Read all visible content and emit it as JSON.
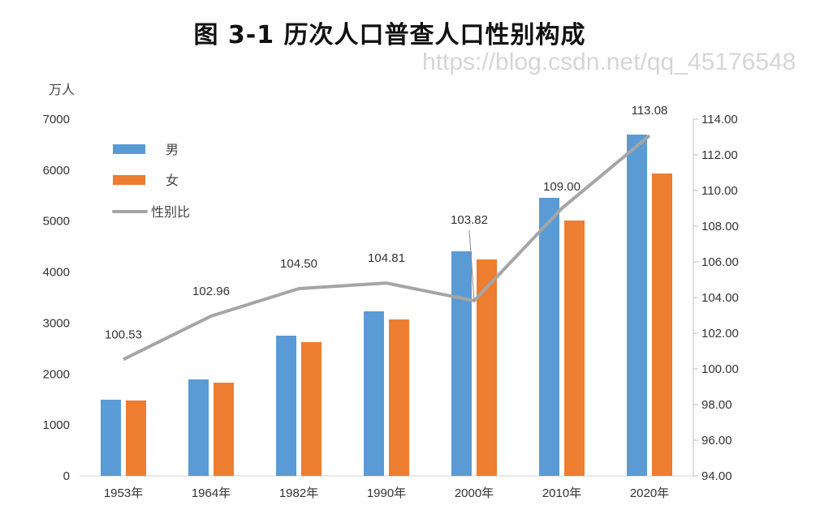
{
  "chart_data": {
    "type": "bar+line",
    "title": "图 3-1   历次人口普查人口性别构成",
    "ylabel": "万人",
    "categories": [
      "1953年",
      "1964年",
      "1982年",
      "1990年",
      "2000年",
      "2010年",
      "2020年"
    ],
    "ylim": [
      0,
      7000
    ],
    "y_ticks": [
      0,
      1000,
      2000,
      3000,
      4000,
      5000,
      6000,
      7000
    ],
    "y2lim": [
      94,
      114
    ],
    "y2_ticks": [
      "94.00",
      "96.00",
      "98.00",
      "100.00",
      "102.00",
      "104.00",
      "106.00",
      "108.00",
      "110.00",
      "112.00",
      "114.00"
    ],
    "series": [
      {
        "name": "男",
        "type": "bar",
        "color": "#5b9bd5",
        "axis": "left",
        "values": [
          1495,
          1893,
          2752,
          3229,
          4407,
          5457,
          6698
        ]
      },
      {
        "name": "女",
        "type": "bar",
        "color": "#ed7d31",
        "axis": "left",
        "values": [
          1480,
          1830,
          2625,
          3070,
          4248,
          5011,
          5934
        ]
      },
      {
        "name": "性别比",
        "type": "line",
        "color": "#a5a5a5",
        "axis": "right",
        "values": [
          100.53,
          102.96,
          104.5,
          104.81,
          103.82,
          109.0,
          113.08
        ],
        "labels": [
          "100.53",
          "102.96",
          "104.50",
          "104.81",
          "103.82",
          "109.00",
          "113.08"
        ]
      }
    ],
    "legend_position": "top-left",
    "grid": false
  },
  "watermark": "https://blog.csdn.net/qq_45176548"
}
